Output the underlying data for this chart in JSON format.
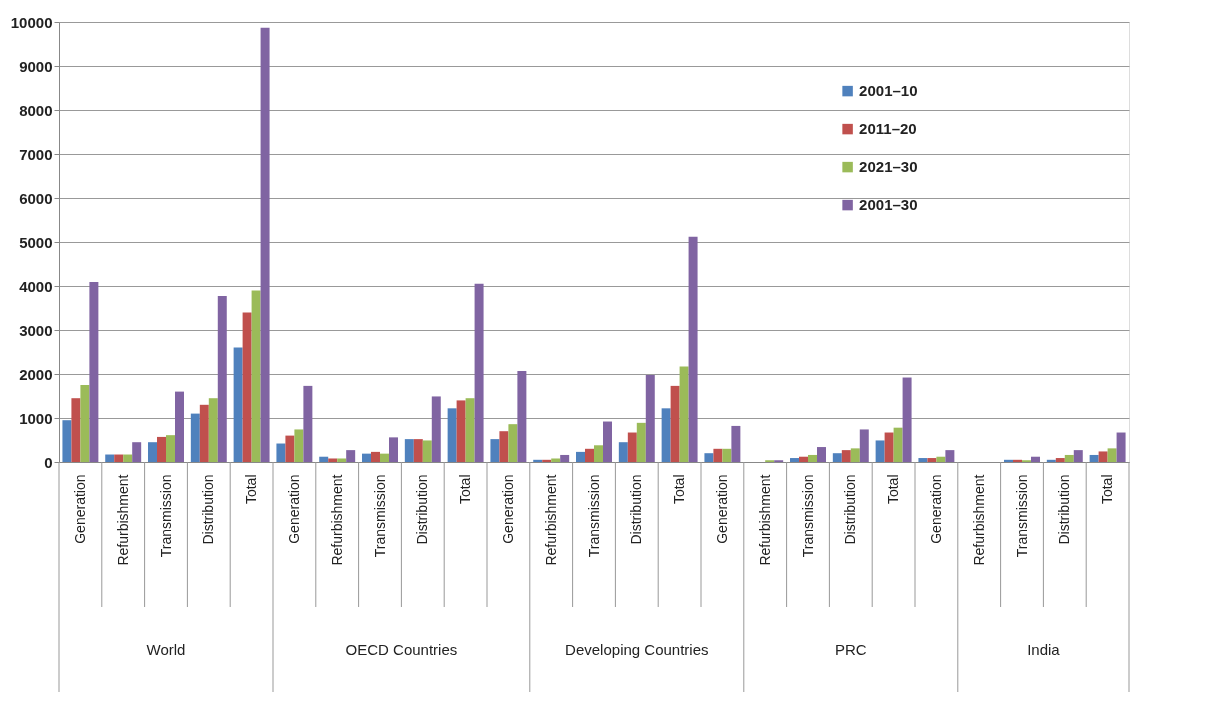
{
  "chart_data": {
    "type": "bar",
    "categories": [
      "Generation",
      "Refurbishment",
      "Transmission",
      "Distribution",
      "Total",
      "Generation",
      "Refurbishment",
      "Transmission",
      "Distribution",
      "Total",
      "Generation",
      "Refurbishment",
      "Transmission",
      "Distribution",
      "Total",
      "Generation",
      "Refurbishment",
      "Transmission",
      "Distribution",
      "Total",
      "Generation",
      "Refurbishment",
      "Transmission",
      "Distribution",
      "Total"
    ],
    "series": [
      {
        "name": "2001–10",
        "color": "#4f81bd",
        "values": [
          950,
          170,
          450,
          1100,
          2600,
          420,
          120,
          190,
          520,
          1220,
          520,
          50,
          230,
          450,
          1220,
          200,
          0,
          90,
          200,
          490,
          90,
          0,
          50,
          50,
          160
        ]
      },
      {
        "name": "2011–20",
        "color": "#c0504d",
        "values": [
          1450,
          170,
          570,
          1300,
          3400,
          600,
          80,
          230,
          520,
          1400,
          700,
          50,
          300,
          670,
          1730,
          300,
          0,
          120,
          270,
          670,
          90,
          0,
          50,
          90,
          240
        ]
      },
      {
        "name": "2021–30",
        "color": "#9bbb59",
        "values": [
          1750,
          170,
          610,
          1450,
          3900,
          740,
          80,
          190,
          490,
          1450,
          860,
          80,
          380,
          890,
          2170,
          300,
          40,
          160,
          310,
          780,
          120,
          0,
          40,
          160,
          310
        ]
      },
      {
        "name": "2001–30",
        "color": "#8064a2",
        "values": [
          4090,
          450,
          1600,
          3770,
          9870,
          1730,
          270,
          560,
          1490,
          4050,
          2070,
          160,
          920,
          1980,
          5120,
          820,
          40,
          340,
          740,
          1920,
          270,
          0,
          120,
          270,
          670
        ]
      }
    ],
    "annotations": [
      "World",
      "OECD Countries",
      "Developing Countries",
      "PRC",
      "India"
    ],
    "ylim": [
      0,
      10000
    ],
    "yticks": [
      0,
      1000,
      2000,
      3000,
      4000,
      5000,
      6000,
      7000,
      8000,
      9000,
      10000
    ],
    "grid": "y",
    "legend": "top right"
  }
}
